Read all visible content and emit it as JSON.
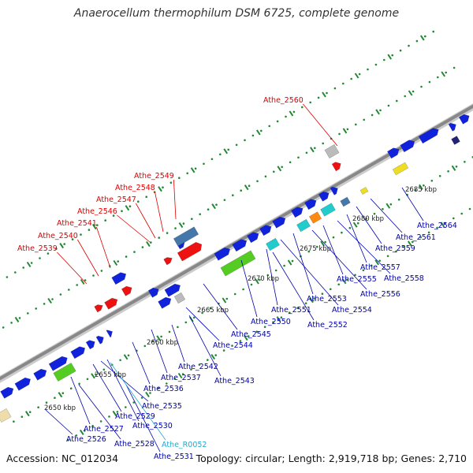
{
  "title": "Anaerocellum thermophilum DSM 6725, complete genome",
  "footer": {
    "accession": "Accession: NC_012034",
    "topology": "Topology: circular; Length: 2,919,718 bp; Genes: 2,710"
  },
  "colors": {
    "backbone": "#999999",
    "top_label": "#dd0000",
    "bottom_label": "#0000aa",
    "rna_label": "#22aacc",
    "tick": "#228833",
    "dot": "#228833",
    "gene_blue": "#1122dd",
    "gene_red": "#ee1111",
    "gene_green": "#55cc22",
    "gene_cyan": "#22cccc",
    "gene_orange": "#ff8811",
    "gene_steel": "#4477aa",
    "gene_grey": "#bbbbbb",
    "gene_yellow": "#eedd22",
    "gene_pale": "#eeddaa"
  },
  "scale_labels": [
    "2650 kbp",
    "2655 kbp",
    "2660 kbp",
    "2665 kbp",
    "2670 kbp",
    "2675 kbp",
    "2680 kbp",
    "2685 kbp"
  ],
  "top_labels": [
    "Athe_2560",
    "Athe_2549",
    "Athe_2548",
    "Athe_2547",
    "Athe_2546",
    "Athe_2541",
    "Athe_2540",
    "Athe_2539"
  ],
  "bottom_labels": [
    "Athe_2564",
    "Athe_2561",
    "Athe_2559",
    "Athe_2557",
    "Athe_2558",
    "Athe_2555",
    "Athe_2556",
    "Athe_2553",
    "Athe_2554",
    "Athe_2551",
    "Athe_2550",
    "Athe_2552",
    "Athe_2545",
    "Athe_2544",
    "Athe_2542",
    "Athe_2537",
    "Athe_2543",
    "Athe_2536",
    "Athe_2535",
    "Athe_2529",
    "Athe_2527",
    "Athe_2530",
    "Athe_2526",
    "Athe_2528",
    "Athe_2531"
  ],
  "rna_labels": [
    "Athe_R0052"
  ]
}
